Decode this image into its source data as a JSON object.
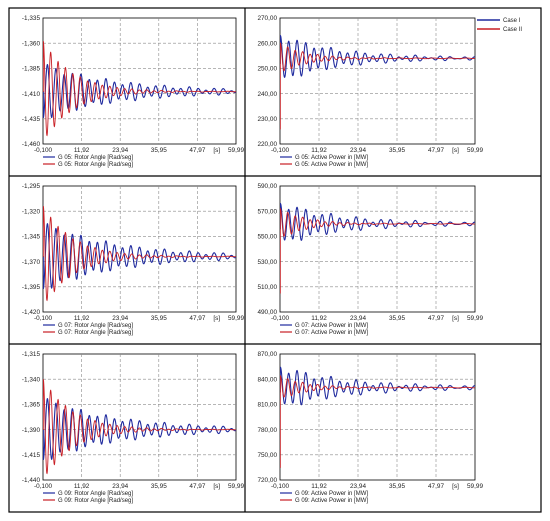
{
  "figure_legend": {
    "entries": [
      {
        "label": "Case I",
        "color": "#1f2a9e"
      },
      {
        "label": "Case II",
        "color": "#c81e24"
      }
    ]
  },
  "x_axis_unit": "[s]",
  "chart_data": [
    {
      "type": "line",
      "panel": "G05-rotor-angle",
      "xlim": [
        -0.1,
        59.99
      ],
      "xticks": [
        "-0,100",
        "11,92",
        "23,94",
        "35,95",
        "47,97",
        "59,99"
      ],
      "ylim": [
        -1.46,
        -1.335
      ],
      "yticks": [
        "-1,335",
        "-1,360",
        "-1,385",
        "-1,410",
        "-1,435",
        "-1,460"
      ],
      "steady": -1.408,
      "legend": [
        "G 05: Rotor Angle [Rad/seg]",
        "G 05: Rotor Angle [Rad/seg]"
      ],
      "series": [
        {
          "color": "#1f2a9e",
          "initial": -1.408,
          "start_amp": -0.026,
          "decay": 0.045,
          "period": 2.6,
          "extra_amp": 0.0028,
          "extra_period": 3.7
        },
        {
          "color": "#c81e24",
          "initial": -1.408,
          "start_amp": 0.05,
          "decay": 0.11,
          "period": 2.3,
          "extra_amp": 0.0006,
          "extra_period": 5.1
        }
      ]
    },
    {
      "type": "line",
      "panel": "G05-active-power",
      "xlim": [
        -0.1,
        59.99
      ],
      "xticks": [
        "-0,100",
        "11,92",
        "23,94",
        "35,95",
        "47,97",
        "59,99"
      ],
      "ylim": [
        220,
        270
      ],
      "yticks": [
        "270,00",
        "260,00",
        "250,00",
        "240,00",
        "230,00",
        "220,00"
      ],
      "steady": 254,
      "legend": [
        "G 05: Active Power in [MW]",
        "G 05: Active Power in [MW]"
      ],
      "series": [
        {
          "color": "#1f2a9e",
          "initial": 252,
          "start_amp": 9,
          "decay": 0.06,
          "period": 2.6,
          "extra_amp": 1.0,
          "extra_period": 3.7
        },
        {
          "color": "#c81e24",
          "initial": 226,
          "start_amp": 6,
          "decay": 0.13,
          "period": 2.3,
          "extra_amp": 0.25,
          "extra_period": 5.1
        }
      ]
    },
    {
      "type": "line",
      "panel": "G07-rotor-angle",
      "xlim": [
        -0.1,
        59.99
      ],
      "xticks": [
        "-0,100",
        "11,92",
        "23,94",
        "35,95",
        "47,97",
        "59,99"
      ],
      "ylim": [
        -1.42,
        -1.295
      ],
      "yticks": [
        "-1,295",
        "-1,320",
        "-1,345",
        "-1,370",
        "-1,395",
        "-1,420"
      ],
      "steady": -1.365,
      "legend": [
        "G 07: Rotor Angle [Rad/seg]",
        "G 07: Rotor Angle [Rad/seg]"
      ],
      "series": [
        {
          "color": "#1f2a9e",
          "initial": -1.365,
          "start_amp": -0.032,
          "decay": 0.045,
          "period": 2.6,
          "extra_amp": 0.003,
          "extra_period": 3.7
        },
        {
          "color": "#c81e24",
          "initial": -1.365,
          "start_amp": 0.05,
          "decay": 0.11,
          "period": 2.3,
          "extra_amp": 0.0006,
          "extra_period": 5.1
        }
      ]
    },
    {
      "type": "line",
      "panel": "G07-active-power",
      "xlim": [
        -0.1,
        59.99
      ],
      "xticks": [
        "-0,100",
        "11,92",
        "23,94",
        "35,95",
        "47,97",
        "59,99"
      ],
      "ylim": [
        490,
        590
      ],
      "yticks": [
        "590,00",
        "570,00",
        "550,00",
        "530,00",
        "510,00",
        "490,00"
      ],
      "steady": 560,
      "legend": [
        "G 07:  Active Power in [MW]",
        "G 07:  Active Power in [MW]"
      ],
      "series": [
        {
          "color": "#1f2a9e",
          "initial": 556,
          "start_amp": 16,
          "decay": 0.06,
          "period": 2.6,
          "extra_amp": 2.5,
          "extra_period": 3.7
        },
        {
          "color": "#c81e24",
          "initial": 505,
          "start_amp": 12,
          "decay": 0.13,
          "period": 2.3,
          "extra_amp": 0.5,
          "extra_period": 5.1
        }
      ]
    },
    {
      "type": "line",
      "panel": "G09-rotor-angle",
      "xlim": [
        -0.1,
        59.99
      ],
      "xticks": [
        "-0,100",
        "11,92",
        "23,94",
        "35,95",
        "47,97",
        "59,99"
      ],
      "ylim": [
        -1.44,
        -1.315
      ],
      "yticks": [
        "-1,315",
        "-1,340",
        "-1,365",
        "-1,390",
        "-1,415",
        "-1,440"
      ],
      "steady": -1.39,
      "legend": [
        "G 09:  Rotor Angle [Rad/seg]",
        "G 09:  Rotor Angle [Rad/seg]"
      ],
      "series": [
        {
          "color": "#1f2a9e",
          "initial": -1.39,
          "start_amp": -0.03,
          "decay": 0.045,
          "period": 2.6,
          "extra_amp": 0.003,
          "extra_period": 3.7
        },
        {
          "color": "#c81e24",
          "initial": -1.39,
          "start_amp": 0.05,
          "decay": 0.11,
          "period": 2.3,
          "extra_amp": 0.0006,
          "extra_period": 5.1
        }
      ]
    },
    {
      "type": "line",
      "panel": "G09-active-power",
      "xlim": [
        -0.1,
        59.99
      ],
      "xticks": [
        "-0,100",
        "11,92",
        "23,94",
        "35,95",
        "47,97",
        "59,99"
      ],
      "ylim": [
        720,
        870
      ],
      "yticks": [
        "870,00",
        "840,00",
        "810,00",
        "780,00",
        "750,00",
        "720,00"
      ],
      "steady": 830,
      "legend": [
        "G 09:  Active Power in [MW]",
        "G 09:  Active Power in [MW]"
      ],
      "series": [
        {
          "color": "#1f2a9e",
          "initial": 825,
          "start_amp": 24,
          "decay": 0.055,
          "period": 2.6,
          "extra_amp": 4.0,
          "extra_period": 3.7
        },
        {
          "color": "#c81e24",
          "initial": 735,
          "start_amp": 14,
          "decay": 0.13,
          "period": 2.3,
          "extra_amp": 0.8,
          "extra_period": 5.1
        }
      ]
    }
  ]
}
